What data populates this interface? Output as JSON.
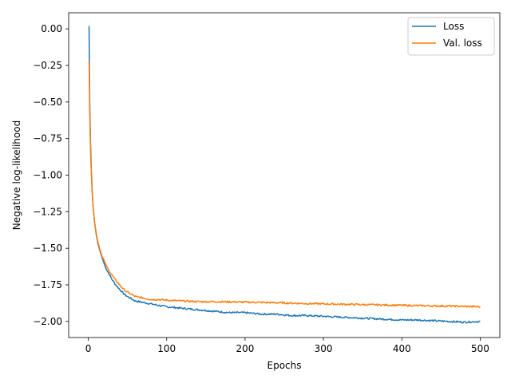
{
  "chart_data": {
    "type": "line",
    "title": "",
    "xlabel": "Epochs",
    "ylabel": "Negative log-likelihood",
    "xlim": [
      -25,
      525
    ],
    "ylim": [
      -2.11,
      0.11
    ],
    "xticks": [
      0,
      100,
      200,
      300,
      400,
      500
    ],
    "yticks": [
      0.0,
      -0.25,
      -0.5,
      -0.75,
      -1.0,
      -1.25,
      -1.5,
      -1.75,
      -2.0
    ],
    "ytick_labels": [
      "0.00",
      "−0.25",
      "−0.50",
      "−0.75",
      "−1.00",
      "−1.25",
      "−1.50",
      "−1.75",
      "−2.00"
    ],
    "grid": false,
    "legend_position": "top-right",
    "series": [
      {
        "name": "Loss",
        "color": "#1f77b4",
        "x": [
          1,
          2,
          3,
          4,
          5,
          6,
          8,
          10,
          12,
          15,
          18,
          20,
          22,
          25,
          30,
          35,
          40,
          45,
          50,
          60,
          70,
          80,
          90,
          100,
          120,
          140,
          160,
          180,
          200,
          220,
          240,
          260,
          280,
          300,
          320,
          340,
          360,
          380,
          400,
          420,
          440,
          460,
          480,
          500
        ],
        "values": [
          0.02,
          -0.55,
          -0.8,
          -0.98,
          -1.1,
          -1.2,
          -1.32,
          -1.4,
          -1.46,
          -1.52,
          -1.57,
          -1.6,
          -1.63,
          -1.66,
          -1.71,
          -1.75,
          -1.78,
          -1.81,
          -1.83,
          -1.86,
          -1.87,
          -1.88,
          -1.89,
          -1.9,
          -1.91,
          -1.92,
          -1.93,
          -1.94,
          -1.94,
          -1.95,
          -1.95,
          -1.96,
          -1.96,
          -1.965,
          -1.97,
          -1.975,
          -1.98,
          -1.985,
          -1.99,
          -1.99,
          -1.995,
          -2.0,
          -2.005,
          -2.0
        ]
      },
      {
        "name": "Val. loss",
        "color": "#ff7f0e",
        "x": [
          1,
          2,
          3,
          4,
          5,
          6,
          8,
          10,
          12,
          15,
          18,
          20,
          22,
          25,
          30,
          35,
          40,
          45,
          50,
          60,
          70,
          80,
          90,
          100,
          120,
          140,
          160,
          180,
          200,
          220,
          240,
          260,
          280,
          300,
          320,
          340,
          360,
          380,
          400,
          420,
          440,
          460,
          480,
          500
        ],
        "values": [
          -0.22,
          -0.6,
          -0.85,
          -1.0,
          -1.12,
          -1.21,
          -1.32,
          -1.39,
          -1.45,
          -1.51,
          -1.56,
          -1.58,
          -1.61,
          -1.64,
          -1.68,
          -1.72,
          -1.75,
          -1.78,
          -1.8,
          -1.83,
          -1.84,
          -1.85,
          -1.85,
          -1.855,
          -1.86,
          -1.865,
          -1.865,
          -1.866,
          -1.868,
          -1.87,
          -1.872,
          -1.875,
          -1.878,
          -1.88,
          -1.882,
          -1.884,
          -1.886,
          -1.888,
          -1.89,
          -1.892,
          -1.894,
          -1.895,
          -1.897,
          -1.9
        ]
      }
    ]
  }
}
